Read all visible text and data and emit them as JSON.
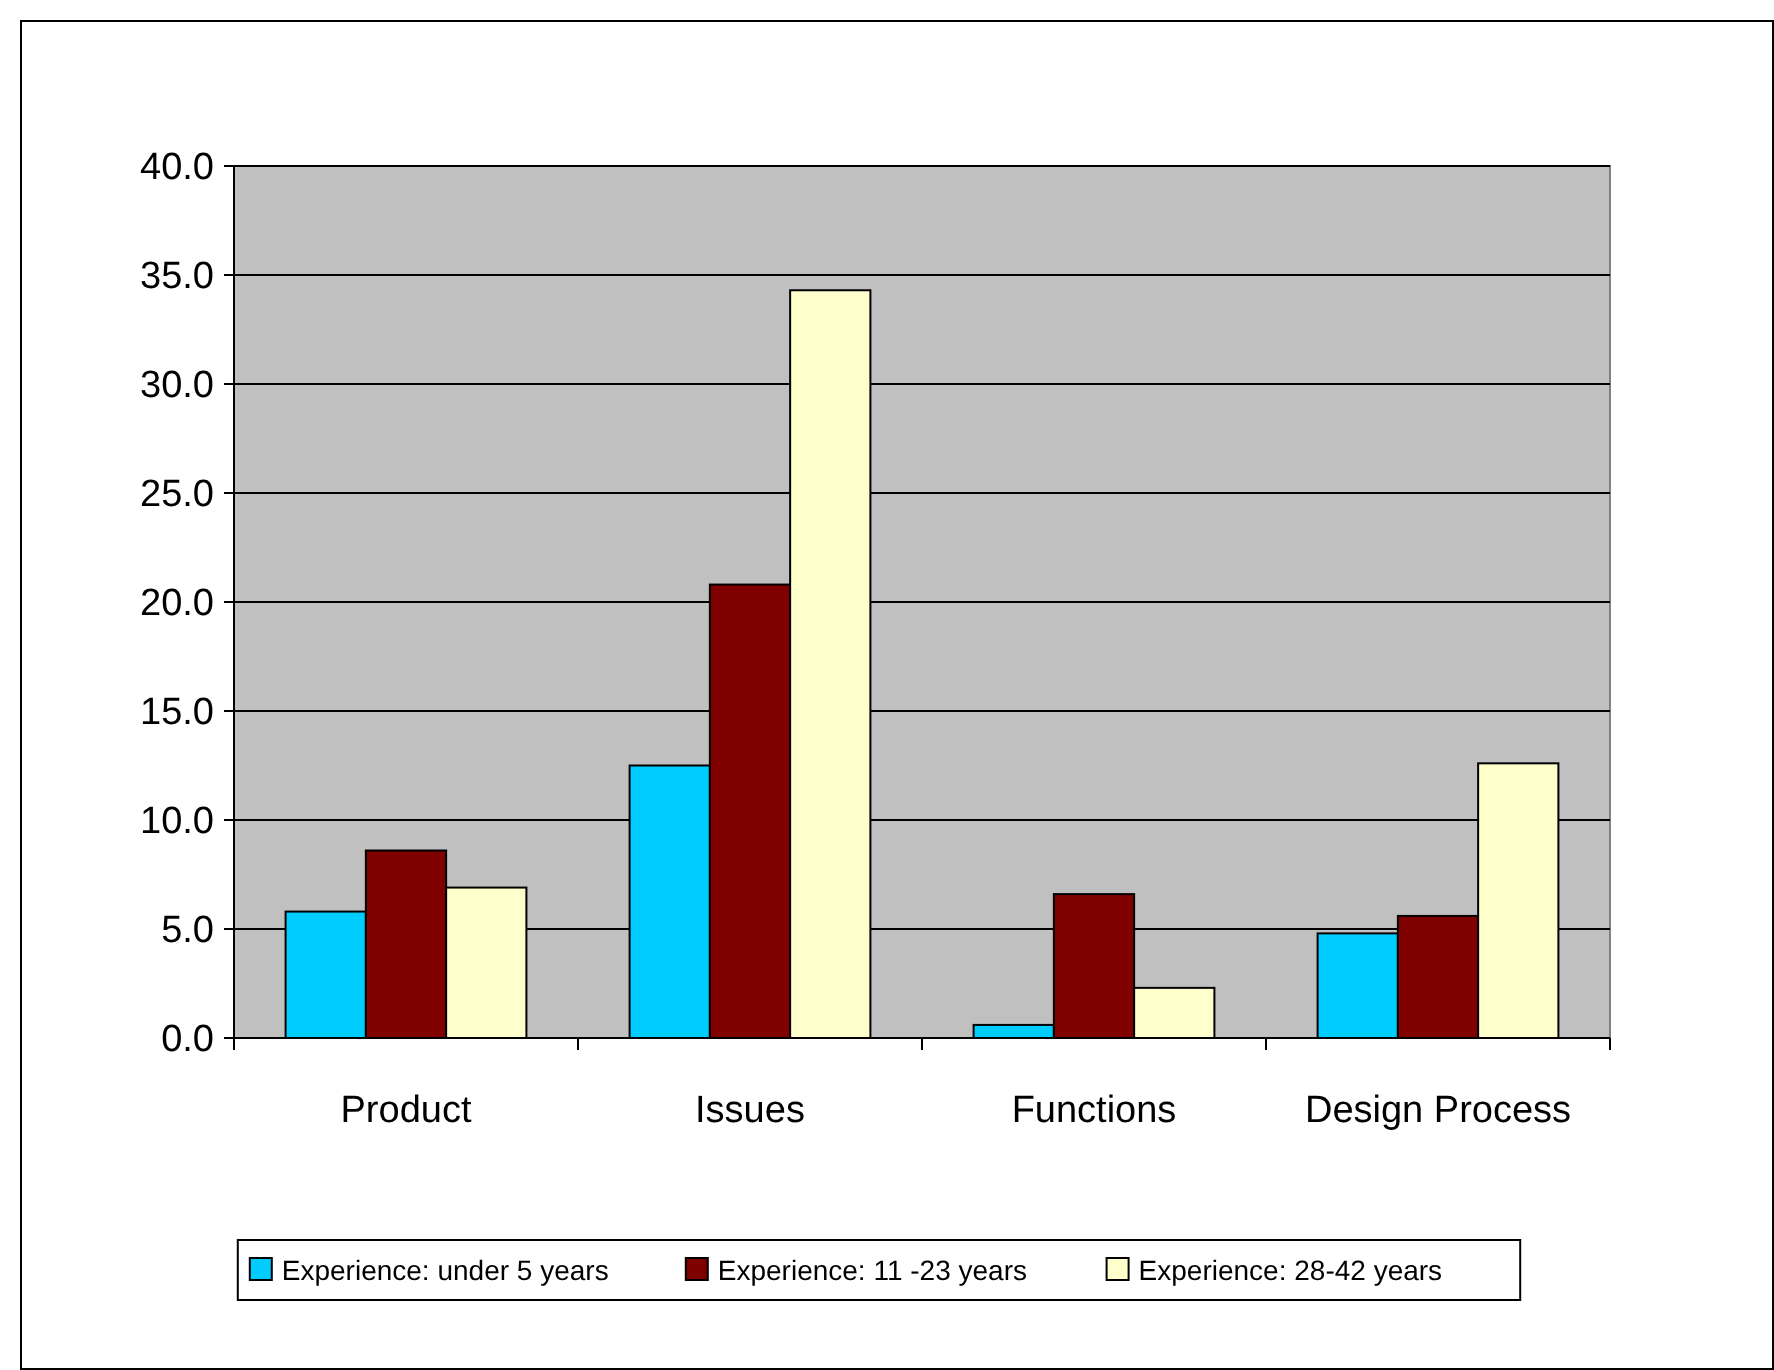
{
  "chart_data": {
    "type": "bar",
    "categories": [
      "Product",
      "Issues",
      "Functions",
      "Design Process"
    ],
    "series": [
      {
        "name": "Experience: under 5 years",
        "color": "#00ccff",
        "values": [
          5.8,
          12.5,
          0.6,
          4.8
        ]
      },
      {
        "name": "Experience: 11 -23 years",
        "color": "#800000",
        "values": [
          8.6,
          20.8,
          6.6,
          5.6
        ]
      },
      {
        "name": "Experience: 28-42 years",
        "color": "#ffffcc",
        "values": [
          6.9,
          34.3,
          2.3,
          12.6
        ]
      }
    ],
    "ylim": [
      0,
      40
    ],
    "yticks": [
      {
        "value": 0,
        "label": "0.0"
      },
      {
        "value": 5,
        "label": "5.0"
      },
      {
        "value": 10,
        "label": "10.0"
      },
      {
        "value": 15,
        "label": "15.0"
      },
      {
        "value": 20,
        "label": "20.0"
      },
      {
        "value": 25,
        "label": "25.0"
      },
      {
        "value": 30,
        "label": "30.0"
      },
      {
        "value": 35,
        "label": "35.0"
      },
      {
        "value": 40,
        "label": "40.0"
      }
    ],
    "grid": "y",
    "legend": "bottom"
  }
}
